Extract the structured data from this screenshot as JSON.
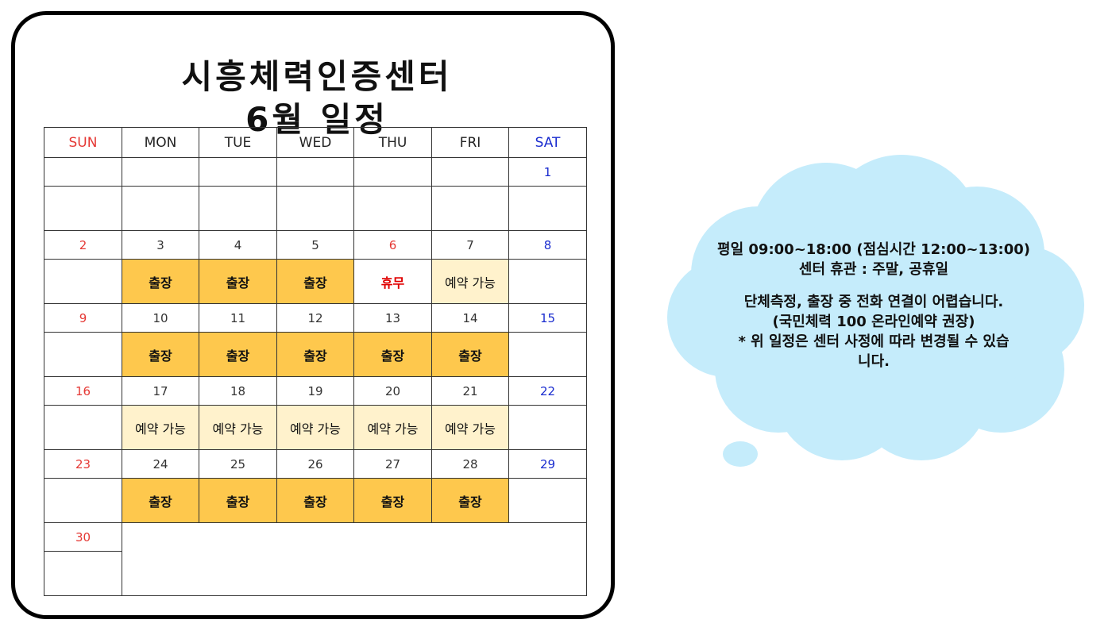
{
  "title_line1": "시흥체력인증센터",
  "title_line2": "6월 일정",
  "weekdays": [
    "SUN",
    "MON",
    "TUE",
    "WED",
    "THU",
    "FRI",
    "SAT"
  ],
  "weeks": [
    {
      "days": [
        "",
        "",
        "",
        "",
        "",
        "",
        "1"
      ],
      "events": [
        "",
        "",
        "",
        "",
        "",
        "",
        ""
      ]
    },
    {
      "days": [
        "2",
        "3",
        "4",
        "5",
        "6",
        "7",
        "8"
      ],
      "events": [
        "",
        "출장",
        "출장",
        "출장",
        "휴무",
        "예약 가능",
        ""
      ]
    },
    {
      "days": [
        "9",
        "10",
        "11",
        "12",
        "13",
        "14",
        "15"
      ],
      "events": [
        "",
        "출장",
        "출장",
        "출장",
        "출장",
        "출장",
        ""
      ]
    },
    {
      "days": [
        "16",
        "17",
        "18",
        "19",
        "20",
        "21",
        "22"
      ],
      "events": [
        "",
        "예약 가능",
        "예약 가능",
        "예약 가능",
        "예약 가능",
        "예약 가능",
        ""
      ]
    },
    {
      "days": [
        "23",
        "24",
        "25",
        "26",
        "27",
        "28",
        "29"
      ],
      "events": [
        "",
        "출장",
        "출장",
        "출장",
        "출장",
        "출장",
        ""
      ]
    },
    {
      "days": [
        "30"
      ],
      "events": [
        ""
      ]
    }
  ],
  "colors": {
    "sunday": "#e53935",
    "saturday": "#1a2ccf",
    "business_trip": "#fec84d",
    "available": "#fff2cc",
    "day_off_text": "#e00000",
    "cloud": "#c5ecfb"
  },
  "info": {
    "hours": "평일 09:00~18:00 (점심시간 12:00~13:00)",
    "closed": "센터 휴관 : 주말, 공휴일",
    "notice": "단체측정, 출장 중 전화 연결이 어렵습니다.",
    "recommend": "(국민체력 100 온라인예약 권장)",
    "disclaimer_1": "* 위 일정은 센터 사정에 따라 변경될 수 있습",
    "disclaimer_2": "니다."
  }
}
